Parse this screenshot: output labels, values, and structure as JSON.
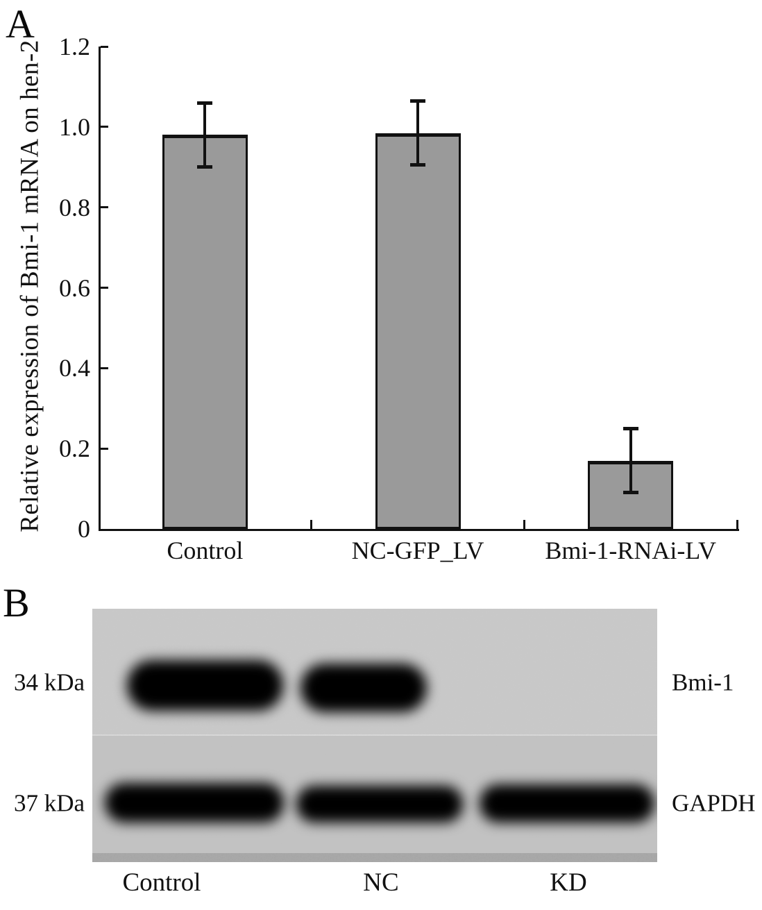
{
  "figure": {
    "panel_a": {
      "label": "A"
    },
    "panel_b": {
      "label": "B",
      "marker_labels": [
        "34 kDa",
        "37 kDa"
      ],
      "protein_labels": [
        "Bmi-1",
        "GAPDH"
      ],
      "lane_labels": [
        "Control",
        "NC",
        "KD"
      ],
      "rows": [
        {
          "protein": "Bmi-1",
          "marker": "34 kDa",
          "bands": [
            {
              "lane": "Control",
              "present": true
            },
            {
              "lane": "NC",
              "present": true
            },
            {
              "lane": "KD",
              "present": false
            }
          ]
        },
        {
          "protein": "GAPDH",
          "marker": "37 kDa",
          "bands": [
            {
              "lane": "Control",
              "present": true
            },
            {
              "lane": "NC",
              "present": true
            },
            {
              "lane": "KD",
              "present": true
            }
          ]
        }
      ]
    }
  },
  "chart_data": {
    "type": "bar",
    "title": "",
    "categories": [
      "Control",
      "NC-GFP_LV",
      "Bmi-1-RNAi-LV"
    ],
    "values": [
      0.98,
      0.985,
      0.17
    ],
    "errors": [
      0.08,
      0.08,
      0.08
    ],
    "xlabel": "",
    "ylabel": "Relative expression of Bmi-1 mRNA on hen-2",
    "ylim": [
      0,
      1.2
    ],
    "ytick_labels": [
      "0",
      "0.2",
      "0.4",
      "0.6",
      "0.8",
      "1.0",
      "1.2"
    ],
    "ytick_values": [
      0,
      0.2,
      0.4,
      0.6,
      0.8,
      1.0,
      1.2
    ],
    "bar_color": "#9a9a9a",
    "grid": false,
    "legend": null
  }
}
